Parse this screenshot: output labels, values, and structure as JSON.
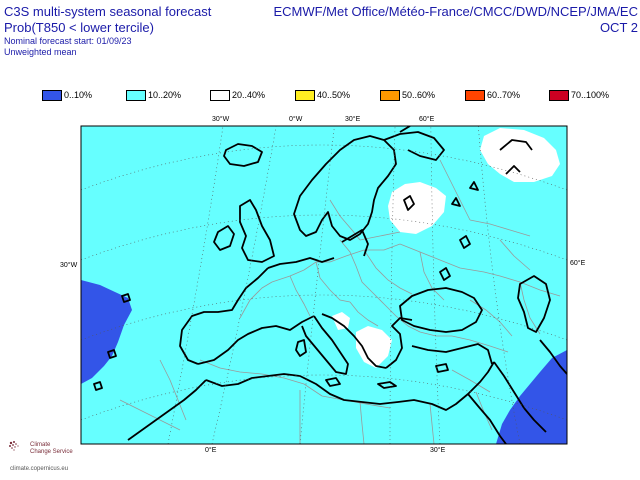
{
  "header": {
    "title_line1": "C3S multi-system seasonal forecast",
    "title_line2": "Prob(T850 < lower tercile)",
    "nominal_start": "Nominal forecast start: 01/09/23",
    "weighting": "Unweighted mean",
    "centres": "ECMWF/Met Office/Météo-France/CMCC/DWD/NCEP/JMA/EC",
    "valid_month": "OCT 2"
  },
  "legend": [
    {
      "label": "0..10%",
      "color": "#3355e8"
    },
    {
      "label": "10..20%",
      "color": "#66ffff"
    },
    {
      "label": "20..40%",
      "color": "#ffffff"
    },
    {
      "label": "40..50%",
      "color": "#ffee22"
    },
    {
      "label": "50..60%",
      "color": "#ff9900"
    },
    {
      "label": "60..70%",
      "color": "#ff4400"
    },
    {
      "label": "70..100%",
      "color": "#cc0022"
    }
  ],
  "map": {
    "lon_labels_top": [
      "30°W",
      "0°W",
      "30°E",
      "60°E"
    ],
    "lat_labels_left": [
      "30°W"
    ],
    "lat_labels_right": [
      "60°E"
    ],
    "lon_labels_bottom": [
      "0°E",
      "30°E"
    ],
    "background_color": "#66ffff"
  },
  "footer": {
    "org_line1": "Climate",
    "org_line2": "Change Service",
    "url": "climate.copernicus.eu"
  }
}
